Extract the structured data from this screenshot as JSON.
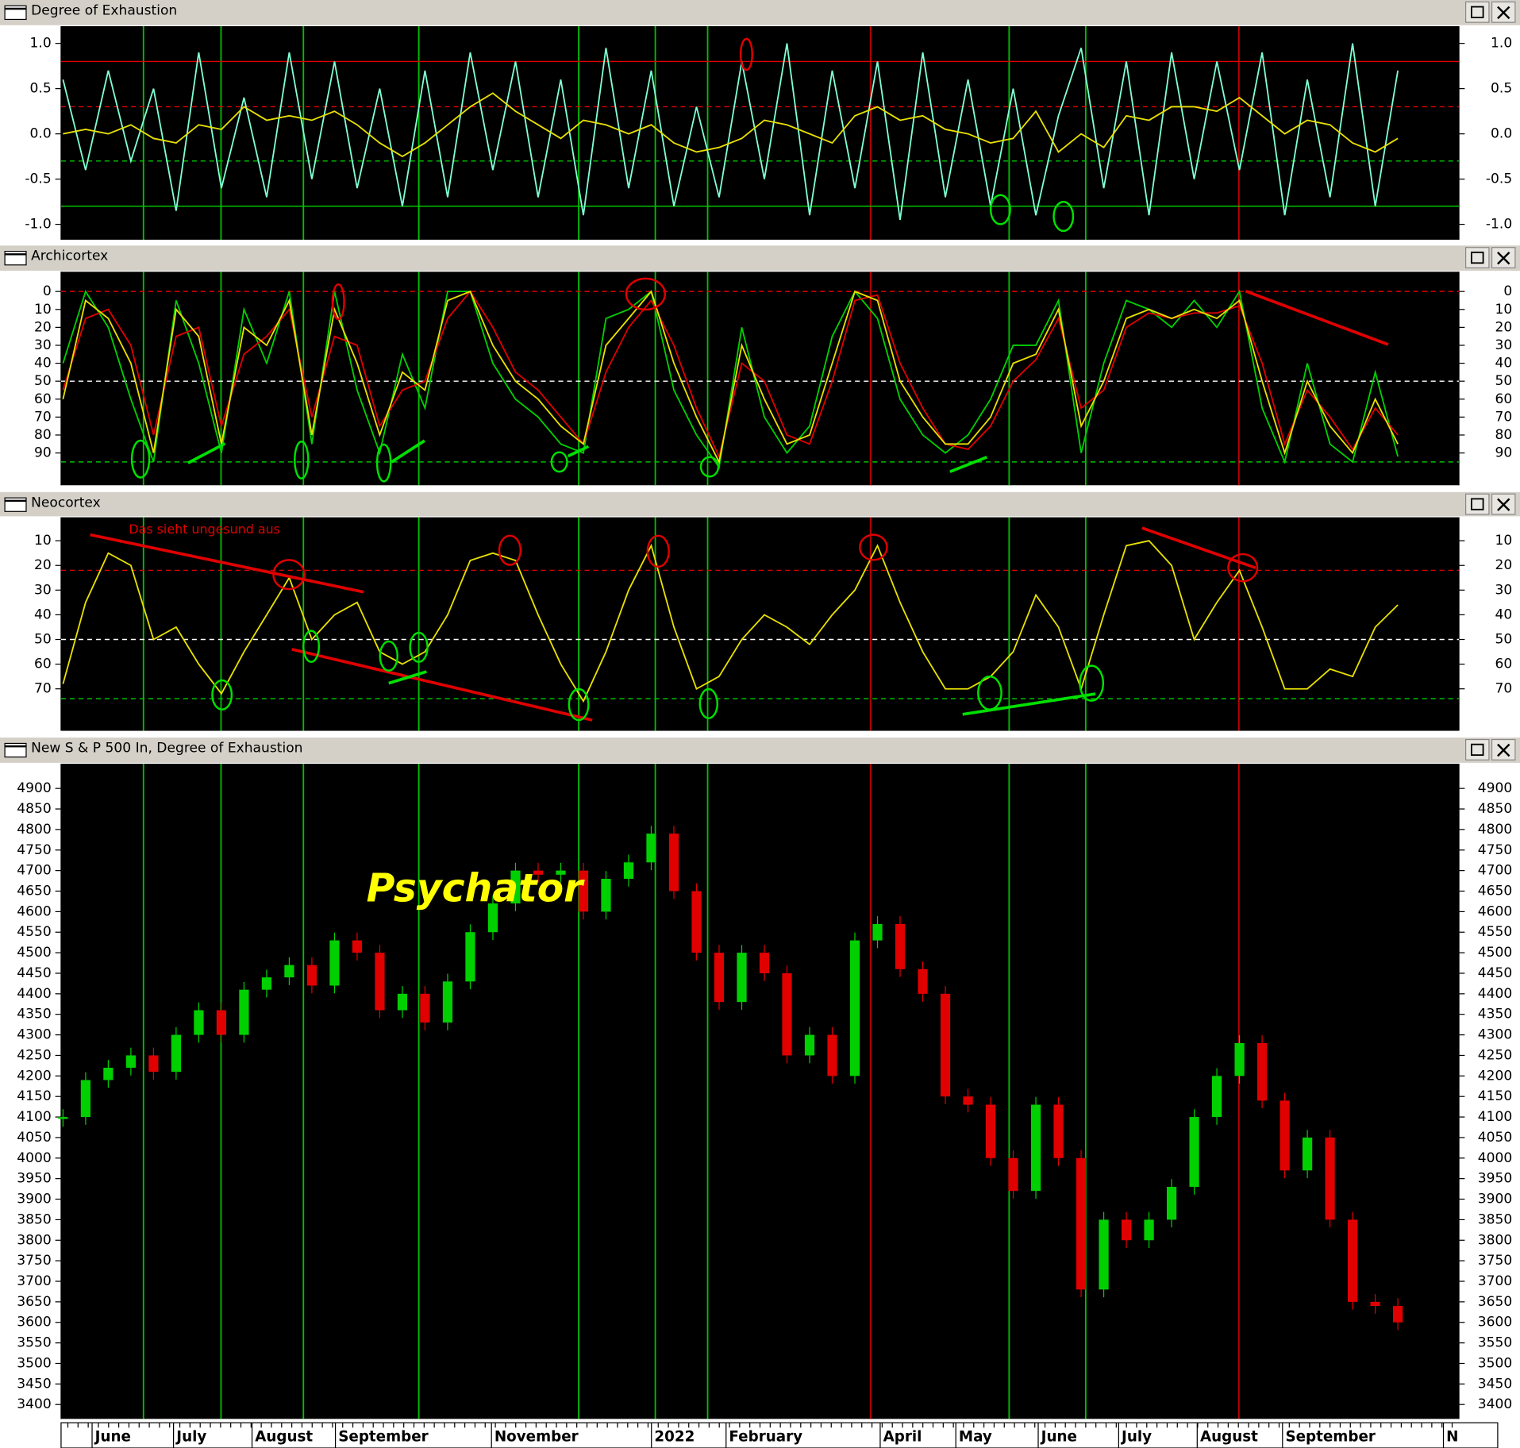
{
  "chart_data": [
    {
      "type": "line",
      "title": "Degree of Exhaustion",
      "ylim": [
        -1.17,
        1.19
      ],
      "yticks": [
        {
          "value": -1,
          "label": "-1.0"
        },
        -0.5,
        {
          "value": 0,
          "label": "0.0"
        },
        0.5,
        {
          "value": 1,
          "label": "1.0"
        }
      ],
      "hlines": [
        {
          "value": 0.8,
          "color": "#e00000",
          "dash": false
        },
        {
          "value": 0.3,
          "color": "#e00000",
          "dash": true
        },
        {
          "value": -0.3,
          "color": "#00c000",
          "dash": true
        },
        {
          "value": -0.8,
          "color": "#00c000",
          "dash": false
        }
      ],
      "series": [
        {
          "color": "#7fffd4",
          "values": [
            0.6,
            -0.4,
            0.7,
            -0.3,
            0.5,
            -0.85,
            0.9,
            -0.6,
            0.4,
            -0.7,
            0.9,
            -0.5,
            0.8,
            -0.6,
            0.5,
            -0.8,
            0.7,
            -0.7,
            0.9,
            -0.4,
            0.8,
            -0.7,
            0.6,
            -0.9,
            0.95,
            -0.6,
            0.7,
            -0.8,
            0.3,
            -0.7,
            0.8,
            -0.5,
            1.0,
            -0.9,
            0.7,
            -0.6,
            0.8,
            -0.95,
            0.9,
            -0.7,
            0.6,
            -0.8,
            0.5,
            -0.9,
            0.2,
            0.95,
            -0.6,
            0.8,
            -0.9,
            0.9,
            -0.5,
            0.8,
            -0.4,
            0.9,
            -0.9,
            0.6,
            -0.7,
            1.0,
            -0.8,
            0.7
          ]
        },
        {
          "color": "#e8e000",
          "values": [
            0,
            0.05,
            0,
            0.1,
            -0.05,
            -0.1,
            0.1,
            0.05,
            0.3,
            0.15,
            0.2,
            0.15,
            0.25,
            0.1,
            -0.1,
            -0.25,
            -0.1,
            0.1,
            0.3,
            0.45,
            0.25,
            0.1,
            -0.05,
            0.15,
            0.1,
            0,
            0.1,
            -0.1,
            -0.2,
            -0.15,
            -0.05,
            0.15,
            0.1,
            0,
            -0.1,
            0.2,
            0.3,
            0.15,
            0.2,
            0.05,
            0,
            -0.1,
            -0.05,
            0.25,
            -0.2,
            0,
            -0.15,
            0.2,
            0.15,
            0.3,
            0.3,
            0.25,
            0.4,
            0.2,
            0,
            0.15,
            0.1,
            -0.1,
            -0.2,
            -0.05
          ]
        }
      ]
    },
    {
      "type": "line",
      "title": "Archicortex",
      "ylim": [
        108,
        -11
      ],
      "yticks": [
        0,
        10,
        20,
        30,
        40,
        50,
        60,
        70,
        80,
        90
      ],
      "hlines": [
        {
          "value": 0,
          "color": "#e00000",
          "dash": true
        },
        {
          "value": 50,
          "color": "#ffffff",
          "dash": true
        },
        {
          "value": 95,
          "color": "#00c000",
          "dash": true
        }
      ],
      "series": [
        {
          "color": "#00d000",
          "values": [
            40,
            0,
            20,
            60,
            95,
            5,
            40,
            90,
            10,
            40,
            0,
            85,
            0,
            55,
            90,
            35,
            65,
            0,
            0,
            40,
            60,
            70,
            85,
            90,
            15,
            10,
            0,
            55,
            80,
            98,
            20,
            70,
            90,
            75,
            25,
            0,
            15,
            60,
            80,
            90,
            80,
            60,
            30,
            30,
            5,
            90,
            40,
            5,
            10,
            20,
            5,
            20,
            0,
            65,
            95,
            40,
            85,
            95,
            45,
            92
          ]
        },
        {
          "color": "#e00000",
          "values": [
            55,
            15,
            10,
            30,
            80,
            25,
            20,
            75,
            35,
            25,
            10,
            70,
            25,
            30,
            75,
            55,
            50,
            15,
            0,
            20,
            45,
            55,
            70,
            85,
            45,
            20,
            5,
            30,
            65,
            92,
            40,
            50,
            80,
            85,
            50,
            5,
            2,
            40,
            65,
            85,
            88,
            75,
            50,
            38,
            15,
            65,
            55,
            20,
            12,
            15,
            12,
            12,
            8,
            40,
            85,
            55,
            70,
            88,
            65,
            80
          ]
        },
        {
          "color": "#e8e000",
          "values": [
            60,
            5,
            15,
            40,
            90,
            10,
            25,
            85,
            20,
            30,
            5,
            80,
            10,
            40,
            80,
            45,
            55,
            5,
            0,
            30,
            50,
            60,
            75,
            85,
            30,
            15,
            0,
            40,
            70,
            95,
            30,
            60,
            85,
            80,
            40,
            0,
            5,
            50,
            70,
            85,
            85,
            70,
            40,
            35,
            10,
            75,
            50,
            15,
            10,
            15,
            10,
            15,
            5,
            50,
            90,
            50,
            75,
            90,
            60,
            85
          ]
        }
      ]
    },
    {
      "type": "line",
      "title": "Neocortex",
      "annotation": "Das sieht ungesund aus",
      "ylim": [
        87,
        0.5
      ],
      "yticks": [
        10,
        20,
        30,
        40,
        50,
        60,
        70
      ],
      "hlines": [
        {
          "value": 22,
          "color": "#e00000",
          "dash": true
        },
        {
          "value": 50,
          "color": "#ffffff",
          "dash": true
        },
        {
          "value": 74,
          "color": "#00c000",
          "dash": true
        }
      ],
      "series": [
        {
          "color": "#e8e000",
          "values": [
            68,
            35,
            15,
            20,
            50,
            45,
            60,
            72,
            55,
            40,
            25,
            50,
            40,
            35,
            55,
            60,
            55,
            40,
            18,
            15,
            18,
            40,
            60,
            75,
            55,
            30,
            12,
            45,
            70,
            65,
            50,
            40,
            45,
            52,
            40,
            30,
            12,
            35,
            55,
            70,
            70,
            65,
            55,
            32,
            45,
            70,
            40,
            12,
            10,
            20,
            50,
            35,
            22,
            45,
            70,
            70,
            62,
            65,
            45,
            36
          ]
        }
      ]
    },
    {
      "type": "bar",
      "title": "New S & P 500 In, Degree of Exhaustion",
      "annotation": "Psychator",
      "ylim": [
        3365,
        4960
      ],
      "yticks": [
        3400,
        3450,
        3500,
        3550,
        3600,
        3650,
        3700,
        3750,
        3800,
        3850,
        3900,
        3950,
        4000,
        4050,
        4100,
        4150,
        4200,
        4250,
        4300,
        4350,
        4400,
        4450,
        4500,
        4550,
        4600,
        4650,
        4700,
        4750,
        4800,
        4850,
        4900
      ],
      "up_color": "#00d000",
      "down_color": "#e00000",
      "values": [
        4100,
        4190,
        4220,
        4250,
        4210,
        4300,
        4360,
        4300,
        4410,
        4440,
        4470,
        4420,
        4530,
        4500,
        4360,
        4400,
        4330,
        4430,
        4550,
        4620,
        4700,
        4690,
        4700,
        4600,
        4680,
        4720,
        4790,
        4650,
        4500,
        4380,
        4500,
        4450,
        4250,
        4300,
        4200,
        4530,
        4570,
        4460,
        4400,
        4150,
        4130,
        4000,
        3920,
        4130,
        4000,
        3680,
        3850,
        3800,
        3850,
        3930,
        4100,
        4200,
        4280,
        4140,
        3970,
        4050,
        3850,
        3650,
        3640,
        3600
      ],
      "x_labels": [
        "June",
        "July",
        "August",
        "September",
        "November",
        "2022",
        "February",
        "April",
        "May",
        "June",
        "July",
        "August",
        "September",
        "N"
      ]
    }
  ]
}
